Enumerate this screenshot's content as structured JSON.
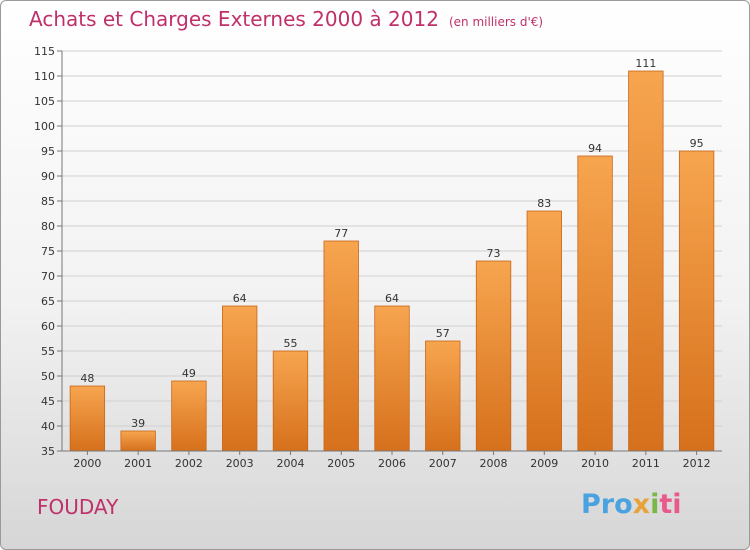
{
  "header": {
    "title": "Achats et Charges Externes 2000 à 2012",
    "unit": "(en milliers d'€)"
  },
  "footer": {
    "city": "FOUDAY",
    "brand": [
      "Pro",
      "x",
      "i",
      "ti"
    ]
  },
  "colors": {
    "title": "#c0306a",
    "bar_top": "#f7a54f",
    "bar_bottom": "#d6701c",
    "bar_edge": "#c9651a"
  },
  "chart_data": {
    "type": "bar",
    "title": "Achats et Charges Externes 2000 à 2012",
    "subtitle": "(en milliers d'€)",
    "categories": [
      "2000",
      "2001",
      "2002",
      "2003",
      "2004",
      "2005",
      "2006",
      "2007",
      "2008",
      "2009",
      "2010",
      "2011",
      "2012"
    ],
    "values": [
      48,
      39,
      49,
      64,
      55,
      77,
      64,
      57,
      73,
      83,
      94,
      111,
      95
    ],
    "ylim": [
      35,
      115
    ],
    "yticks": [
      35,
      40,
      45,
      50,
      55,
      60,
      65,
      70,
      75,
      80,
      85,
      90,
      95,
      100,
      105,
      110,
      115
    ],
    "grid": true,
    "legend": "none"
  }
}
